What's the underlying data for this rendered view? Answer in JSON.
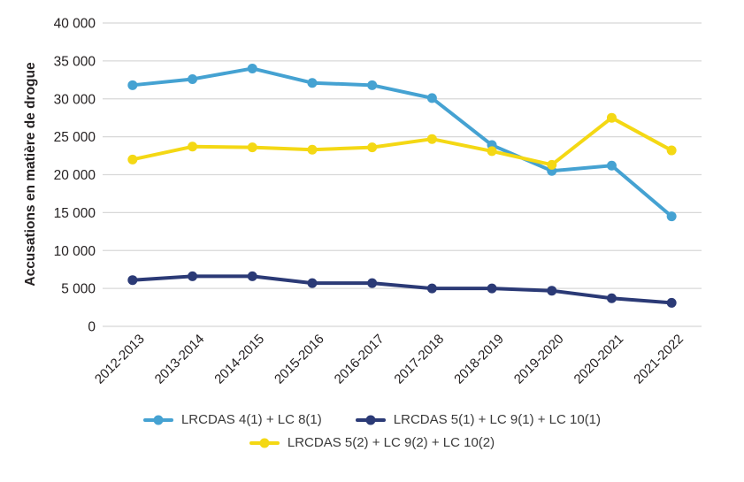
{
  "colors": {
    "grid": "#d8d8d8",
    "axis_text": "#231f20",
    "legend_text": "#3a3a3a",
    "background": "#ffffff"
  },
  "chart_data": {
    "type": "line",
    "title": "",
    "xlabel": "",
    "ylabel": "Accusations en matière de drogue",
    "ylim": [
      0,
      40000
    ],
    "grid": "horizontal",
    "legend_position": "bottom",
    "marker": "circle",
    "y_ticks": [
      {
        "value": 0,
        "label": "0"
      },
      {
        "value": 5000,
        "label": "5 000"
      },
      {
        "value": 10000,
        "label": "10 000"
      },
      {
        "value": 15000,
        "label": "15 000"
      },
      {
        "value": 20000,
        "label": "20 000"
      },
      {
        "value": 25000,
        "label": "25 000"
      },
      {
        "value": 30000,
        "label": "30 000"
      },
      {
        "value": 35000,
        "label": "35 000"
      },
      {
        "value": 40000,
        "label": "40 000"
      }
    ],
    "categories": [
      "2012-2013",
      "2013-2014",
      "2014-2015",
      "2015-2016",
      "2016-2017",
      "2017-2018",
      "2018-2019",
      "2019-2020",
      "2020-2021",
      "2021-2022"
    ],
    "series": [
      {
        "name": "LRCDAS 4(1) + LC 8(1)",
        "color": "#45a2d2",
        "values": [
          31800,
          32600,
          34000,
          32100,
          31800,
          30100,
          23900,
          20500,
          21200,
          14500
        ]
      },
      {
        "name": "LRCDAS 5(1) + LC 9(1) + LC 10(1)",
        "color": "#2b3a76",
        "values": [
          6100,
          6600,
          6600,
          5700,
          5700,
          5000,
          5000,
          4700,
          3700,
          3100
        ]
      },
      {
        "name": "LRCDAS 5(2) + LC 9(2) + LC 10(2)",
        "color": "#f4d814",
        "values": [
          22000,
          23700,
          23600,
          23300,
          23600,
          24700,
          23100,
          21300,
          27500,
          23200
        ]
      }
    ]
  }
}
